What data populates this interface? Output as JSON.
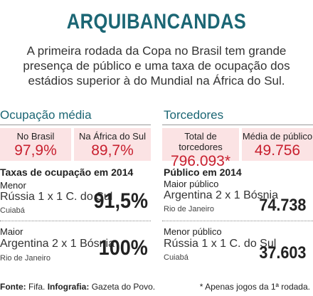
{
  "header": {
    "title": "ARQUIBANCANDAS",
    "subtitle_lines": [
      "A primeira rodada da Copa no Brasil tem grande",
      "presença de público e uma taxa de ocupação dos",
      "estádios superior à do Mundial na África do Sul."
    ]
  },
  "left": {
    "heading": "Ocupação média",
    "boxes": [
      {
        "label": "No Brasil",
        "value": "97,9%"
      },
      {
        "label": "Na África do Sul",
        "value": "89,7%"
      }
    ],
    "section_title": "Taxas de ocupação em 2014",
    "items": [
      {
        "label": "Menor",
        "match": "Rússia 1 x 1 C. do Sul",
        "city": "Cuiabá",
        "value": "91,5%"
      },
      {
        "label": "Maior",
        "match": "Argentina 2 x 1 Bósnia",
        "city": "Rio de Janeiro",
        "value": "100%"
      }
    ]
  },
  "right": {
    "heading": "Torcedores",
    "boxes": [
      {
        "label": "Total de torcedores",
        "value": "796.093*"
      },
      {
        "label": "Média de público",
        "value": "49.756"
      }
    ],
    "section_title": "Público em 2014",
    "items": [
      {
        "label": "Maior público",
        "match": "Argentina 2 x 1 Bósnia",
        "city": "Rio de Janeiro",
        "value": "74.738"
      },
      {
        "label": "Menor público",
        "match": "Rússia 1 x 1 C. do Sul",
        "city": "Cuiabá",
        "value": "37.603"
      }
    ]
  },
  "footer": {
    "source": [
      {
        "label": "Fonte:",
        "value": "Fifa."
      },
      {
        "label": "Infografia:",
        "value": "Gazeta do Povo."
      }
    ],
    "note": "* Apenas jogos da 1ª rodada."
  }
}
